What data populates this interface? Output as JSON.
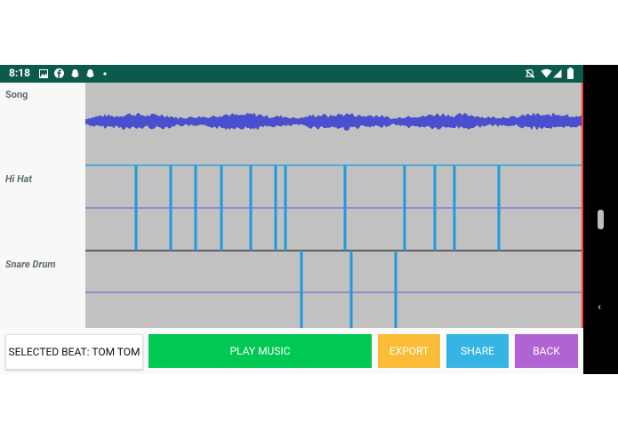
{
  "status_bar": {
    "time": "8:18",
    "left_icons": [
      "image-icon",
      "facebook-icon",
      "snapchat-icon",
      "snapchat-icon",
      "dot-icon"
    ],
    "right_icons": [
      "mute-icon",
      "wifi-icon",
      "signal-icon",
      "battery-icon"
    ]
  },
  "tracks": [
    {
      "name": "Song"
    },
    {
      "name": "Hi Hat"
    },
    {
      "name": "Snare Drum"
    }
  ],
  "buttons": {
    "selected_beat": "SELECTED BEAT: TOM TOM",
    "play": "PLAY MUSIC",
    "export": "EXPORT",
    "share": "SHARE",
    "back": "BACK"
  },
  "colors": {
    "status_bar": "#0b5a4c",
    "track_bg": "#c1c1c1",
    "waveform": "#4a4fcf",
    "beat_marker": "#1e9be0",
    "play": "#00c853",
    "export": "#fbbd37",
    "share": "#37b4e6",
    "back": "#b064d3"
  }
}
